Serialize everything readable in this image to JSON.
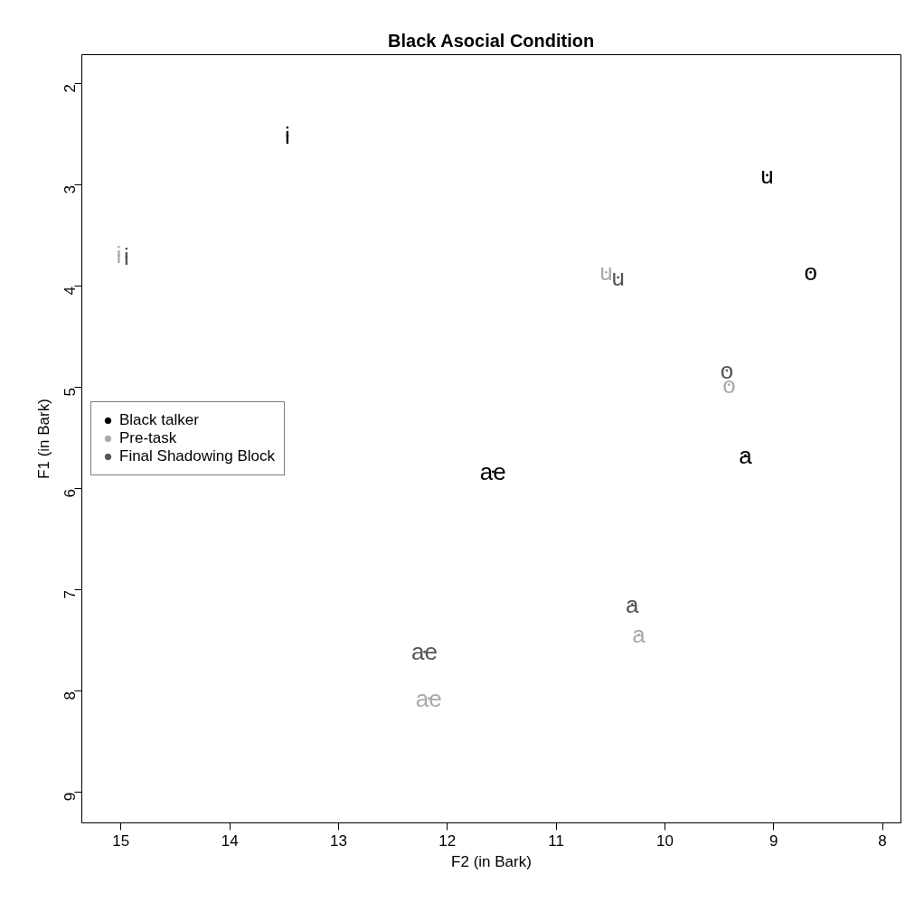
{
  "chart_data": {
    "type": "scatter",
    "title": "Black Asocial Condition",
    "xlabel": "F2 (in Bark)",
    "ylabel": "F1 (in Bark)",
    "xlim": [
      15.36,
      7.83
    ],
    "ylim": [
      9.3,
      1.71
    ],
    "xticks": [
      15,
      14,
      13,
      12,
      11,
      10,
      9,
      8
    ],
    "yticks": [
      2,
      3,
      4,
      5,
      6,
      7,
      8,
      9
    ],
    "grid": false,
    "legend": "left",
    "series": [
      {
        "name": "Black talker",
        "color": "#000000",
        "x": [
          13.47,
          9.06,
          8.66,
          9.26,
          11.58
        ],
        "values": [
          2.51,
          2.9,
          3.86,
          5.67,
          5.83
        ],
        "value_labels": [
          "i",
          "u",
          "o",
          "a",
          "ae"
        ]
      },
      {
        "name": "Pre-task",
        "color": "#aaaaaa",
        "x": [
          15.02,
          10.54,
          9.41,
          10.24,
          12.17
        ],
        "values": [
          3.69,
          3.86,
          4.97,
          7.44,
          8.07
        ],
        "value_labels": [
          "i",
          "u",
          "o",
          "a",
          "ae"
        ]
      },
      {
        "name": "Final Shadowing Block",
        "color": "#555555",
        "x": [
          14.95,
          10.43,
          9.43,
          10.3,
          12.21
        ],
        "values": [
          3.71,
          3.91,
          4.83,
          7.14,
          7.61
        ],
        "value_labels": [
          "i",
          "u",
          "o",
          "a",
          "ae"
        ]
      }
    ]
  }
}
